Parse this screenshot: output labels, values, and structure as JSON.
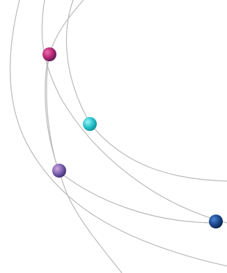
{
  "graphic": {
    "background": "#ffffff",
    "arc_color": "#b8b8b8",
    "dot_colors": {
      "magenta": "#c2307a",
      "cyan": "#2cc7cf",
      "lavender": "#7f66b2",
      "navy": "#1c3f7a"
    }
  }
}
